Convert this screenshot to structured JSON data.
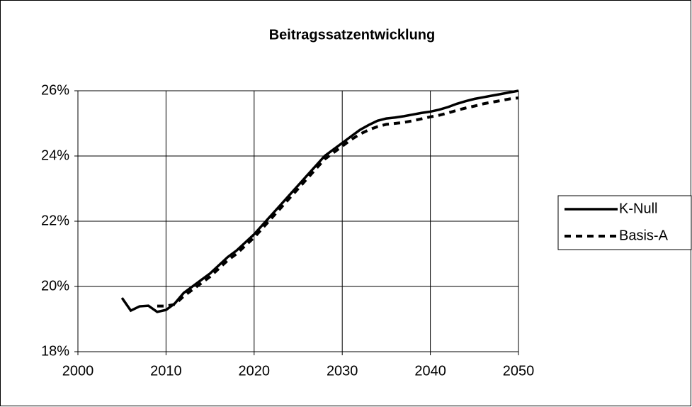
{
  "chart_data": {
    "type": "line",
    "title": "Beitragssatzentwicklung",
    "x": [
      2005,
      2006,
      2007,
      2008,
      2009,
      2010,
      2011,
      2012,
      2013,
      2014,
      2015,
      2016,
      2017,
      2018,
      2019,
      2020,
      2021,
      2022,
      2023,
      2024,
      2025,
      2026,
      2027,
      2028,
      2029,
      2030,
      2031,
      2032,
      2033,
      2034,
      2035,
      2036,
      2037,
      2038,
      2039,
      2040,
      2041,
      2042,
      2043,
      2044,
      2045,
      2046,
      2047,
      2048,
      2049,
      2050
    ],
    "series": [
      {
        "name": "K-Null",
        "color": "#000000",
        "dash": false,
        "values": [
          19.65,
          19.26,
          19.39,
          19.41,
          19.22,
          19.28,
          19.48,
          19.8,
          20.0,
          20.2,
          20.4,
          20.65,
          20.9,
          21.1,
          21.35,
          21.6,
          21.9,
          22.2,
          22.5,
          22.8,
          23.1,
          23.4,
          23.7,
          24.0,
          24.2,
          24.4,
          24.6,
          24.8,
          24.95,
          25.08,
          25.15,
          25.18,
          25.22,
          25.27,
          25.32,
          25.36,
          25.42,
          25.5,
          25.6,
          25.68,
          25.75,
          25.8,
          25.85,
          25.9,
          25.95,
          26.0
        ]
      },
      {
        "name": "Basis-A",
        "color": "#000000",
        "dash": true,
        "values": [
          null,
          null,
          null,
          null,
          19.4,
          19.4,
          19.45,
          19.7,
          19.9,
          20.1,
          20.3,
          20.55,
          20.8,
          21.0,
          21.25,
          21.5,
          21.8,
          22.1,
          22.4,
          22.7,
          23.0,
          23.3,
          23.6,
          23.9,
          24.1,
          24.3,
          24.5,
          24.67,
          24.8,
          24.9,
          24.97,
          25.0,
          25.03,
          25.08,
          25.14,
          25.2,
          25.25,
          25.32,
          25.4,
          25.47,
          25.53,
          25.6,
          25.65,
          25.7,
          25.75,
          25.78
        ]
      }
    ],
    "xlim": [
      2000,
      2050
    ],
    "xticks": [
      2000,
      2010,
      2020,
      2030,
      2040,
      2050
    ],
    "ylim": [
      18,
      26
    ],
    "yticks": [
      {
        "value": 18,
        "label": "18%"
      },
      {
        "value": 20,
        "label": "20%"
      },
      {
        "value": 22,
        "label": "22%"
      },
      {
        "value": 24,
        "label": "24%"
      },
      {
        "value": 26,
        "label": "26%"
      }
    ],
    "grid": true,
    "legend": "right"
  }
}
